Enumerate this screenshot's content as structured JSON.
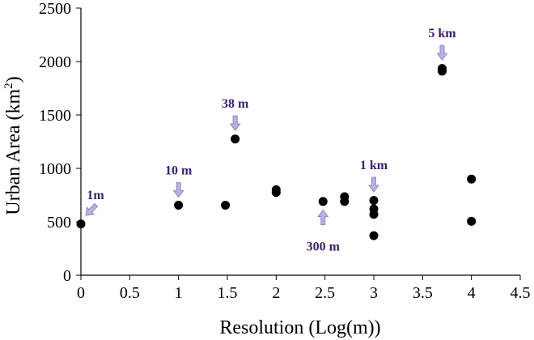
{
  "chart_data": {
    "type": "scatter",
    "title": "",
    "xlabel": "Resolution (Log(m))",
    "ylabel_main": "Urban Area (km",
    "ylabel_sup": "2",
    "ylabel_tail": ")",
    "xlim": [
      0,
      4.5
    ],
    "ylim": [
      0,
      2500
    ],
    "xticks": [
      "0",
      "0.5",
      "1",
      "1.5",
      "2",
      "2.5",
      "3",
      "3.5",
      "4",
      "4.5"
    ],
    "yticks": [
      "0",
      "500",
      "1000",
      "1500",
      "2000",
      "2500"
    ],
    "grid": false,
    "legend": "none",
    "colors": {
      "marker": "#000000",
      "arrow_fill": "#b7b3dc",
      "arrow_stroke": "#8f89c4",
      "annotation_text": "#3b1f6e"
    },
    "points": [
      {
        "x": 0.0,
        "y": 480
      },
      {
        "x": 1.0,
        "y": 655
      },
      {
        "x": 1.48,
        "y": 655
      },
      {
        "x": 1.58,
        "y": 1275
      },
      {
        "x": 2.0,
        "y": 800
      },
      {
        "x": 2.0,
        "y": 775
      },
      {
        "x": 2.48,
        "y": 690
      },
      {
        "x": 2.7,
        "y": 735
      },
      {
        "x": 2.7,
        "y": 690
      },
      {
        "x": 3.0,
        "y": 700
      },
      {
        "x": 3.0,
        "y": 620
      },
      {
        "x": 3.0,
        "y": 570
      },
      {
        "x": 3.0,
        "y": 370
      },
      {
        "x": 3.7,
        "y": 1935
      },
      {
        "x": 3.7,
        "y": 1910
      },
      {
        "x": 4.0,
        "y": 900
      },
      {
        "x": 4.0,
        "y": 505
      }
    ],
    "annotations": [
      {
        "text": "1m",
        "target_x": 0.05,
        "target_y": 560
      },
      {
        "text": "10 m",
        "target_x": 1.0,
        "target_y": 730
      },
      {
        "text": "38 m",
        "target_x": 1.58,
        "target_y": 1355
      },
      {
        "text": "300 m",
        "target_x": 2.48,
        "target_y": 610
      },
      {
        "text": "1 km",
        "target_x": 3.0,
        "target_y": 780
      },
      {
        "text": "5 km",
        "target_x": 3.7,
        "target_y": 2015
      }
    ]
  }
}
